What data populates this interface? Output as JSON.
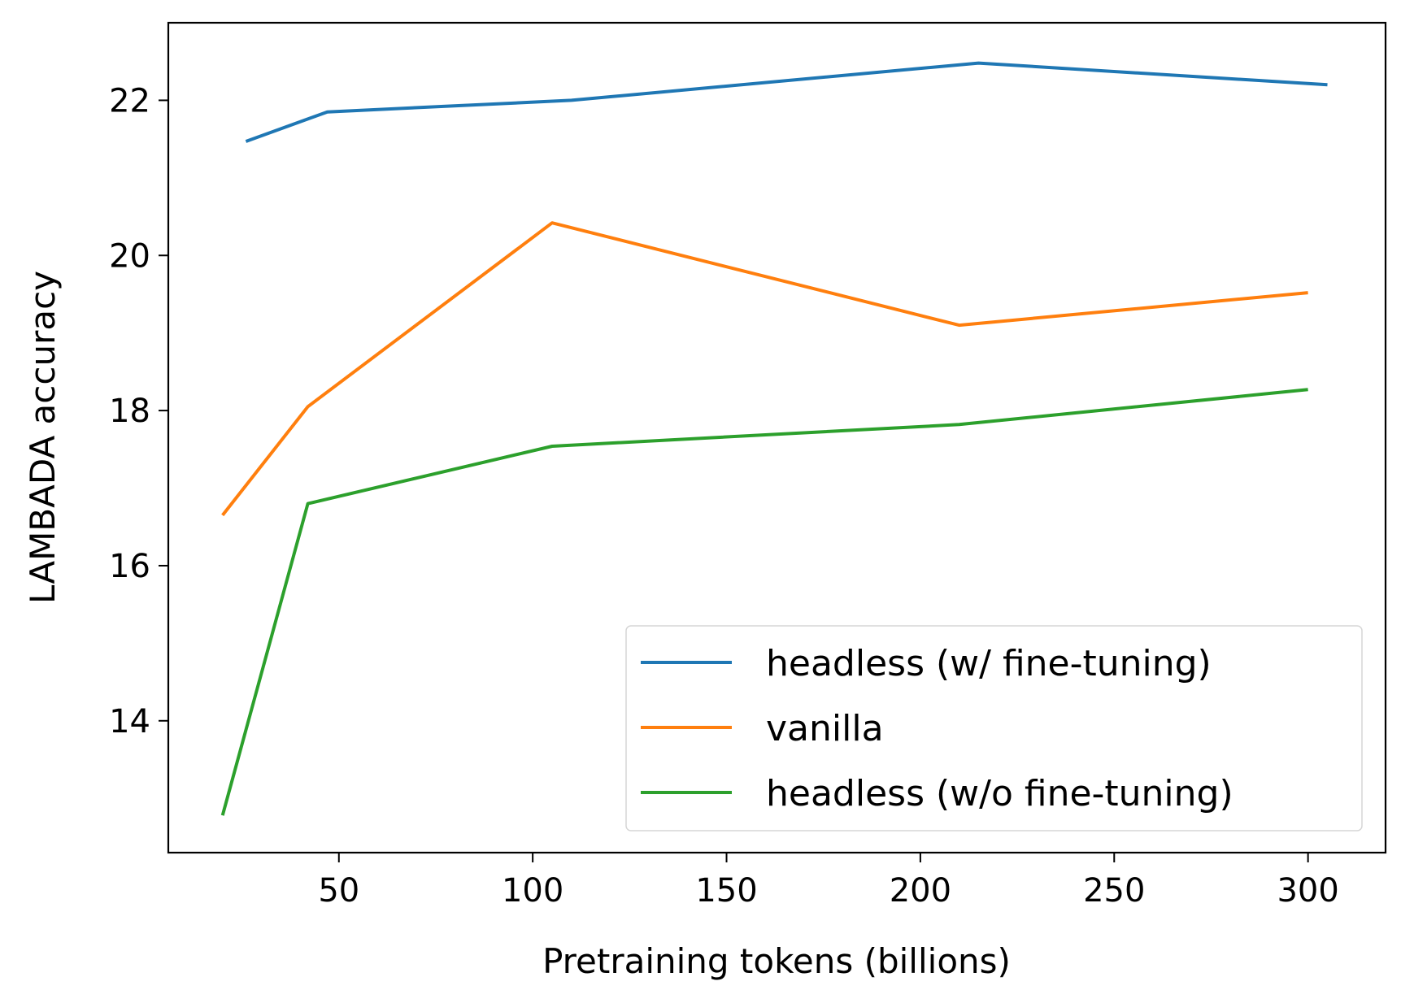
{
  "chart_data": {
    "type": "line",
    "title": "",
    "xlabel": "Pretraining tokens (billions)",
    "ylabel": "LAMBADA accuracy",
    "xlim": [
      6,
      320
    ],
    "ylim": [
      12.3,
      23.0
    ],
    "xticks": [
      50,
      100,
      150,
      200,
      250,
      300
    ],
    "yticks": [
      14,
      16,
      18,
      20,
      22
    ],
    "grid": false,
    "legend_position": "lower-right",
    "series": [
      {
        "name": "headless (w/ fine-tuning)",
        "color": "#1f77b4",
        "x": [
          26,
          47,
          110,
          215,
          305
        ],
        "y": [
          21.47,
          21.85,
          22.0,
          22.48,
          22.2
        ]
      },
      {
        "name": "vanilla",
        "color": "#ff7f0e",
        "x": [
          20,
          42,
          105,
          210,
          300
        ],
        "y": [
          16.65,
          18.05,
          20.42,
          19.1,
          19.52
        ]
      },
      {
        "name": "headless (w/o fine-tuning)",
        "color": "#2ca02c",
        "x": [
          20,
          42,
          105,
          210,
          300
        ],
        "y": [
          12.78,
          16.8,
          17.54,
          17.82,
          18.27
        ]
      }
    ]
  }
}
